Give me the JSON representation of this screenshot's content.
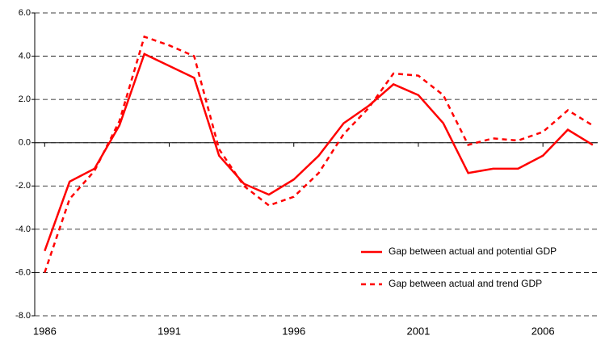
{
  "chart_data": {
    "type": "line",
    "x": [
      1986,
      1987,
      1988,
      1989,
      1990,
      1991,
      1992,
      1993,
      1994,
      1995,
      1996,
      1997,
      1998,
      1999,
      2000,
      2001,
      2002,
      2003,
      2004,
      2005,
      2006,
      2007,
      2008
    ],
    "series": [
      {
        "name": "Gap between actual and potential GDP",
        "color": "#ff0000",
        "dash": false,
        "values": [
          -5.0,
          -1.8,
          -1.2,
          0.8,
          4.1,
          3.55,
          3.0,
          -0.6,
          -1.9,
          -2.4,
          -1.7,
          -0.6,
          0.9,
          1.7,
          2.7,
          2.2,
          0.9,
          -1.4,
          -1.2,
          -1.2,
          -0.6,
          0.6,
          -0.1
        ]
      },
      {
        "name": "Gap between actual and trend GDP",
        "color": "#ff0000",
        "dash": true,
        "values": [
          -6.0,
          -2.6,
          -1.3,
          1.0,
          4.9,
          4.5,
          4.0,
          -0.3,
          -2.0,
          -2.9,
          -2.5,
          -1.4,
          0.4,
          1.6,
          3.2,
          3.1,
          2.2,
          -0.1,
          0.2,
          0.1,
          0.5,
          1.5,
          0.8
        ]
      }
    ],
    "xlim": [
      1985.6,
      2008.2
    ],
    "xticks": [
      1986,
      1991,
      1996,
      2001,
      2006
    ],
    "ylim": [
      -8,
      6
    ],
    "yticks": [
      {
        "value": -8,
        "label": "-8.0"
      },
      {
        "value": -6,
        "label": "-6.0"
      },
      {
        "value": -4,
        "label": "-4.0"
      },
      {
        "value": -2,
        "label": "-2.0"
      },
      {
        "value": 0,
        "label": "0.0"
      },
      {
        "value": 2,
        "label": "2.0"
      },
      {
        "value": 4,
        "label": "4.0"
      },
      {
        "value": 6,
        "label": "6.0"
      }
    ],
    "grid": true,
    "legend": "lower right"
  }
}
